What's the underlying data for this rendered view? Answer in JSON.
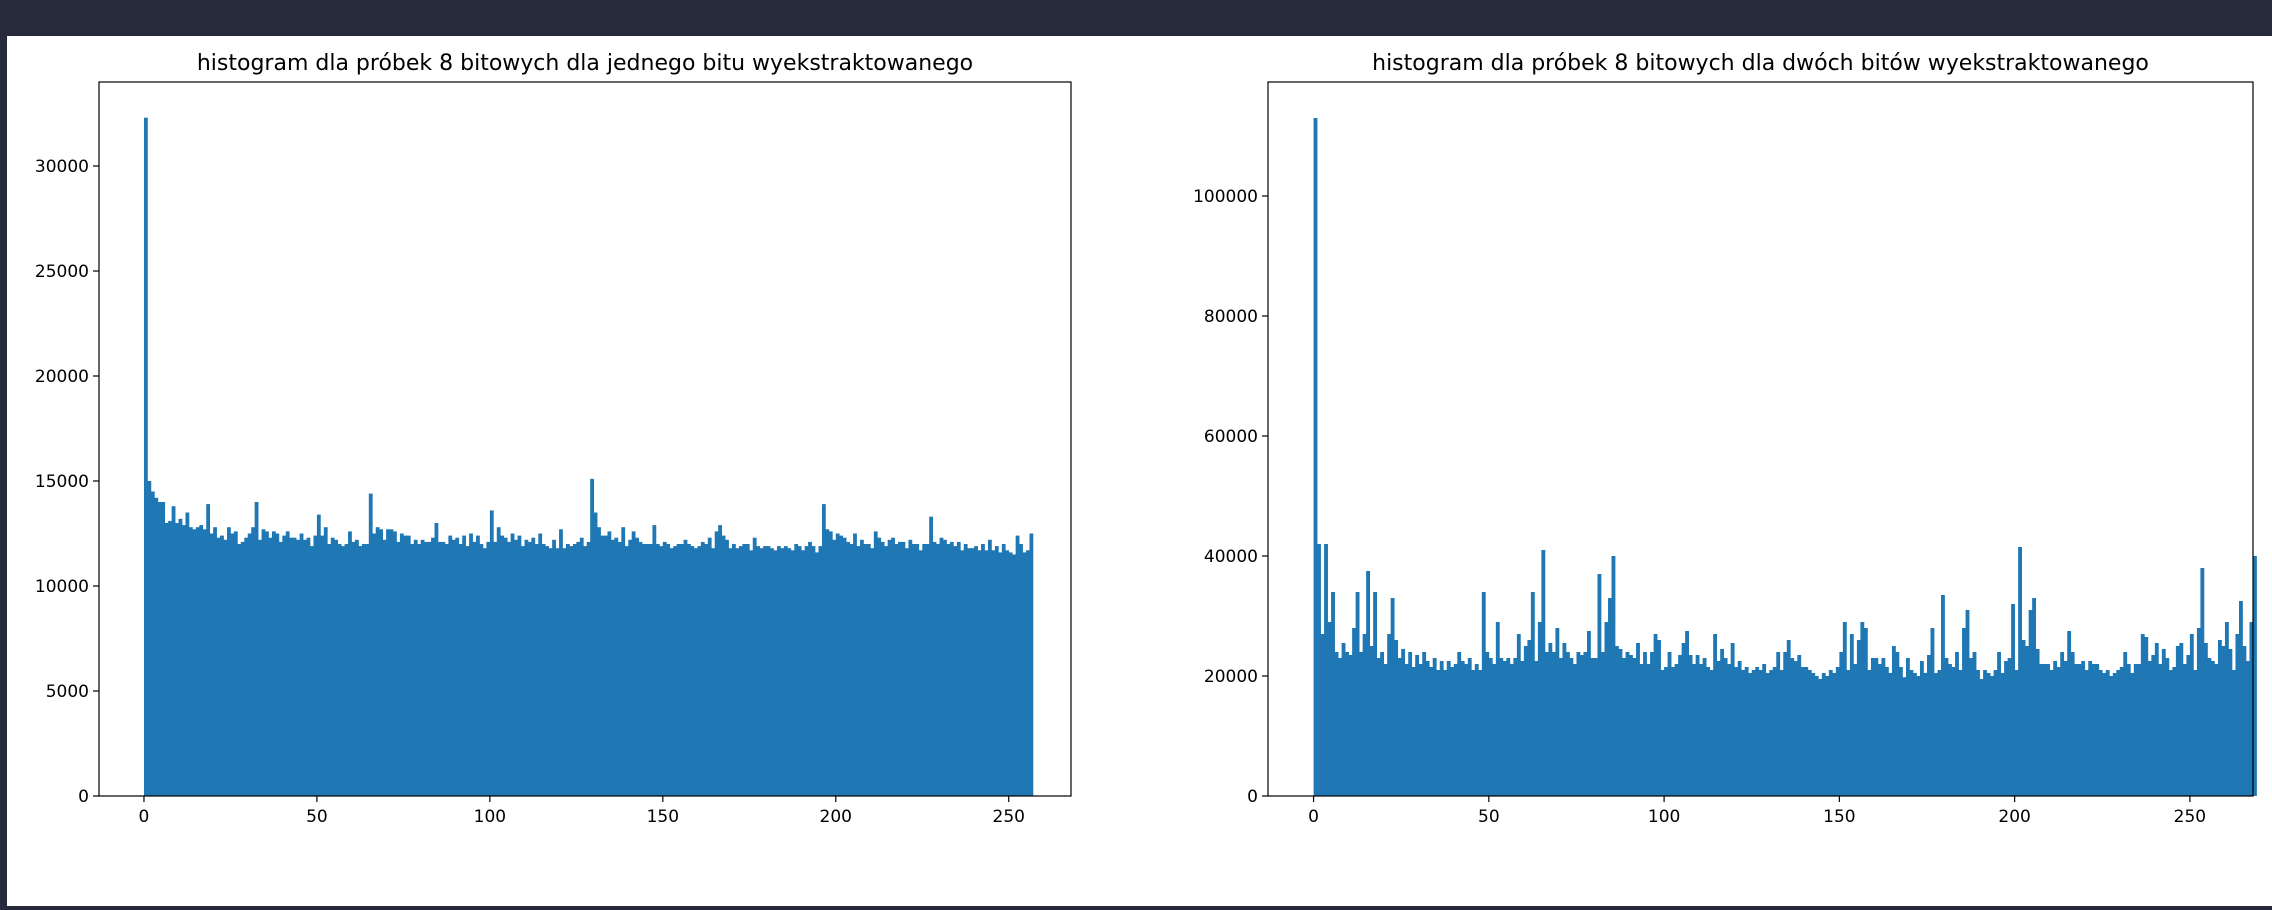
{
  "chart_data": [
    {
      "type": "bar",
      "title": "histogram dla próbek 8 bitowych dla jednego bitu wyekstraktowanego",
      "xlabel": "",
      "ylabel": "",
      "xlim": [
        -13,
        268
      ],
      "ylim": [
        0,
        34000
      ],
      "xticks": [
        0,
        50,
        100,
        150,
        200,
        250
      ],
      "yticks": [
        0,
        5000,
        10000,
        15000,
        20000,
        25000,
        30000
      ],
      "color": "#1f77b4",
      "grid": false,
      "x_start": 0,
      "bin_width": 1,
      "values": [
        32300,
        15000,
        14500,
        14200,
        14000,
        14000,
        13000,
        13100,
        13800,
        13000,
        13200,
        12900,
        13500,
        12800,
        12700,
        12800,
        12900,
        12700,
        13900,
        12500,
        12800,
        12300,
        12400,
        12200,
        12800,
        12500,
        12600,
        12000,
        12100,
        12300,
        12500,
        12800,
        14000,
        12200,
        12700,
        12600,
        12300,
        12600,
        12500,
        12100,
        12400,
        12600,
        12300,
        12300,
        12200,
        12500,
        12200,
        12300,
        11900,
        12400,
        13400,
        12400,
        12800,
        12000,
        12300,
        12200,
        12000,
        11900,
        12000,
        12600,
        12100,
        12200,
        11900,
        12000,
        12000,
        14400,
        12500,
        12800,
        12700,
        12200,
        12700,
        12700,
        12600,
        12100,
        12500,
        12400,
        12400,
        12000,
        12200,
        12000,
        12200,
        12100,
        12100,
        12300,
        13000,
        12100,
        12100,
        12000,
        12400,
        12200,
        12300,
        12000,
        12400,
        11900,
        12500,
        12100,
        12400,
        12000,
        11800,
        12100,
        13600,
        12100,
        12800,
        12400,
        12300,
        12100,
        12500,
        12200,
        12400,
        11900,
        12200,
        12100,
        12300,
        12000,
        12500,
        12000,
        11900,
        11800,
        12200,
        11800,
        12700,
        11800,
        12000,
        11900,
        12000,
        12100,
        12300,
        11900,
        12100,
        15100,
        13500,
        12800,
        12400,
        12400,
        12600,
        12200,
        12300,
        12100,
        12800,
        11900,
        12200,
        12600,
        12300,
        12100,
        12000,
        12000,
        12000,
        12900,
        12000,
        11900,
        12100,
        12000,
        11800,
        11900,
        12000,
        12000,
        12200,
        12000,
        11900,
        11800,
        11900,
        12100,
        12000,
        12300,
        11800,
        12600,
        12900,
        12400,
        12200,
        11800,
        12000,
        11800,
        11900,
        12000,
        12000,
        11700,
        12300,
        11900,
        11800,
        11900,
        11900,
        11800,
        11700,
        11900,
        11800,
        11900,
        11800,
        11700,
        12000,
        11900,
        11700,
        11900,
        12100,
        11900,
        11600,
        11900,
        13900,
        12700,
        12600,
        12200,
        12500,
        12400,
        12300,
        12100,
        12000,
        12500,
        11900,
        12200,
        12000,
        12000,
        11800,
        12600,
        12300,
        12100,
        11900,
        12200,
        12300,
        12000,
        12100,
        12100,
        11800,
        12200,
        12000,
        12000,
        11700,
        12000,
        12000,
        13300,
        12100,
        12000,
        12300,
        12200,
        12000,
        12100,
        11900,
        12100,
        11700,
        12000,
        11800,
        11800,
        11900,
        11700,
        12000,
        11700,
        12200,
        11700,
        11900,
        11600,
        12000,
        11700,
        11600,
        11500,
        12400,
        12000,
        11600,
        11700,
        12500
      ]
    },
    {
      "type": "bar",
      "title": "histogram dla próbek 8 bitowych dla dwóch bitów wyekstraktowanego",
      "xlabel": "",
      "ylabel": "",
      "xlim": [
        -13,
        268
      ],
      "ylim": [
        0,
        119000
      ],
      "xticks": [
        0,
        50,
        100,
        150,
        200,
        250
      ],
      "yticks": [
        0,
        20000,
        40000,
        60000,
        80000,
        100000
      ],
      "color": "#1f77b4",
      "grid": false,
      "x_start": 0,
      "bin_width": 1,
      "values": [
        113000,
        42000,
        27000,
        42000,
        29000,
        34000,
        24000,
        23000,
        25500,
        24000,
        23500,
        28000,
        34000,
        24000,
        27000,
        37500,
        25000,
        34000,
        23000,
        24000,
        22000,
        27000,
        33000,
        26000,
        23000,
        24500,
        22000,
        24000,
        21500,
        23500,
        22000,
        24000,
        22500,
        21500,
        23000,
        21000,
        22500,
        21000,
        22500,
        21500,
        22000,
        24000,
        22500,
        22000,
        23000,
        21000,
        22000,
        21000,
        34000,
        24000,
        23000,
        22000,
        29000,
        23000,
        22500,
        23000,
        22000,
        23000,
        27000,
        22500,
        25000,
        26000,
        34000,
        22500,
        29000,
        41000,
        24000,
        25500,
        24000,
        28000,
        23000,
        25500,
        24000,
        23000,
        22000,
        24000,
        23500,
        24000,
        27500,
        23000,
        23000,
        37000,
        24000,
        29000,
        33000,
        40000,
        25000,
        24500,
        23000,
        24000,
        23500,
        23000,
        25500,
        22000,
        24000,
        22000,
        24000,
        27000,
        26000,
        21000,
        21500,
        24000,
        21500,
        22000,
        23500,
        25500,
        27500,
        23500,
        22000,
        23500,
        22000,
        23000,
        21500,
        21000,
        27000,
        22500,
        24500,
        23000,
        22000,
        25500,
        21500,
        22500,
        21000,
        21500,
        20500,
        21000,
        21500,
        21000,
        22000,
        20500,
        21000,
        21500,
        24000,
        21000,
        24000,
        26000,
        23000,
        22500,
        23500,
        21500,
        21500,
        21000,
        20500,
        20000,
        19500,
        20500,
        20000,
        21000,
        20500,
        21500,
        24000,
        29000,
        21000,
        27000,
        22000,
        26000,
        29000,
        28000,
        21000,
        23000,
        23000,
        22000,
        23000,
        21500,
        20500,
        25000,
        24000,
        21500,
        19800,
        23000,
        21000,
        20500,
        20000,
        22500,
        20500,
        23500,
        28000,
        20500,
        21000,
        33500,
        23000,
        22000,
        21500,
        24000,
        21000,
        28000,
        31000,
        23000,
        24000,
        21000,
        19500,
        21000,
        20500,
        20000,
        21000,
        24000,
        20500,
        22500,
        23000,
        32000,
        21000,
        41500,
        26000,
        25000,
        31000,
        33000,
        24500,
        22000,
        22000,
        22000,
        21000,
        22500,
        21500,
        24000,
        22500,
        27500,
        24000,
        22000,
        22000,
        22500,
        21000,
        22500,
        22000,
        22000,
        21000,
        20500,
        21000,
        20000,
        20500,
        21000,
        21500,
        24000,
        22000,
        20500,
        22000,
        22000,
        27000,
        26500,
        22500,
        23500,
        25500,
        22000,
        24500,
        23000,
        21000,
        21500,
        25000,
        25500,
        22000,
        23500,
        27000,
        21000,
        28000,
        38000,
        25500,
        23000,
        22500,
        22000,
        26000,
        25000,
        29000,
        24500,
        21000,
        27000,
        32500,
        25000,
        22500,
        29000,
        40000
      ]
    }
  ]
}
